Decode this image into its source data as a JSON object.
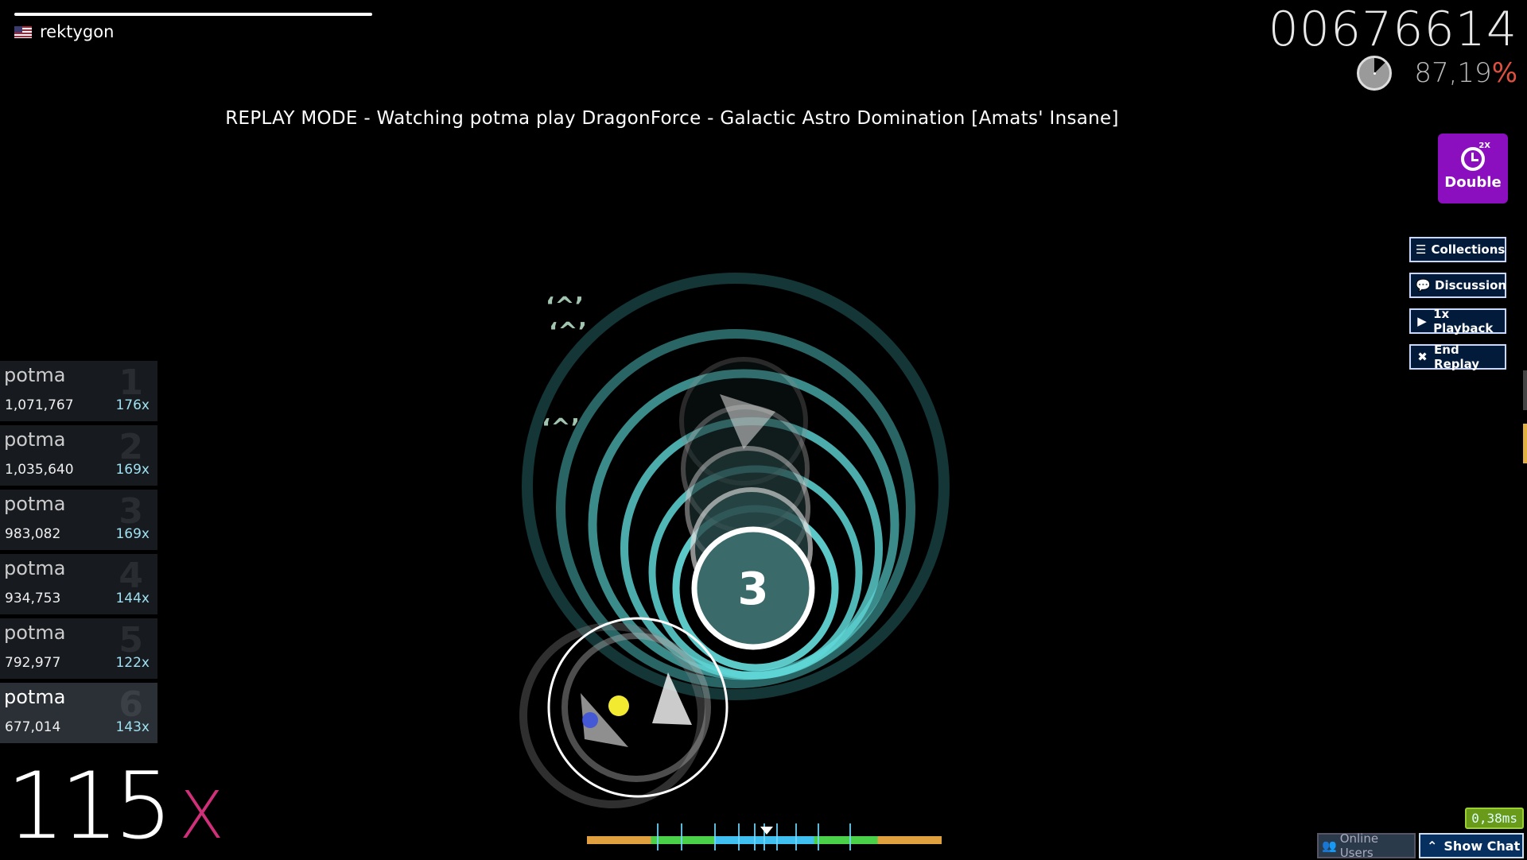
{
  "player": {
    "name": "rektygon",
    "flag": "us-flag-icon"
  },
  "score": "00676614",
  "accuracy": {
    "value": "87,19",
    "unit": "%",
    "pie_fraction": 0.872
  },
  "replay_banner": "REPLAY MODE - Watching potma play DragonForce - Galactic Astro Domination [Amats' Insane]",
  "mod": {
    "tag": "2X",
    "label": "Double"
  },
  "buttons": {
    "collections": "Collections",
    "discussion": "Discussion",
    "playback": "1x Playback",
    "end_replay": "End Replay"
  },
  "leaderboard": [
    {
      "name": "potma",
      "score": "1,071,767",
      "combo": "176x",
      "rank": "1"
    },
    {
      "name": "potma",
      "score": "1,035,640",
      "combo": "169x",
      "rank": "2"
    },
    {
      "name": "potma",
      "score": "983,082",
      "combo": "169x",
      "rank": "3"
    },
    {
      "name": "potma",
      "score": "934,753",
      "combo": "144x",
      "rank": "4"
    },
    {
      "name": "potma",
      "score": "792,977",
      "combo": "122x",
      "rank": "5"
    },
    {
      "name": "potma",
      "score": "677,014",
      "combo": "143x",
      "rank": "6"
    }
  ],
  "combo": {
    "value": "115",
    "suffix": "X"
  },
  "hit_circle_number": "3",
  "latency": "0,38ms",
  "bottom": {
    "online_users": "Online Users",
    "show_chat": "Show Chat"
  },
  "colors": {
    "accent_teal": "#5fd6d6",
    "mod_purple": "#8b0fbf",
    "combo_pink": "#d0307a"
  }
}
